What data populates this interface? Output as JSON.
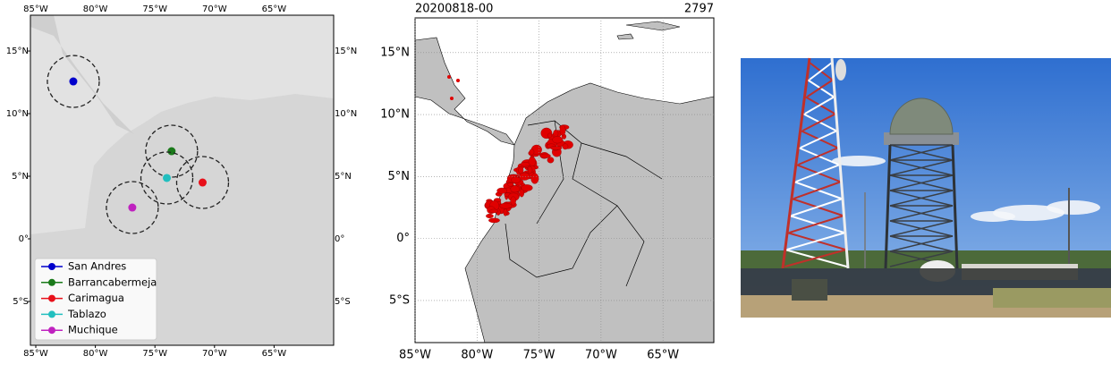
{
  "left_map": {
    "xlim": [
      -85.45,
      -60
    ],
    "ylim": [
      -8.5,
      17.86
    ],
    "xticks": [
      {
        "value": -85,
        "label": "85°W"
      },
      {
        "value": -80,
        "label": "80°W"
      },
      {
        "value": -75,
        "label": "75°W"
      },
      {
        "value": -70,
        "label": "70°W"
      },
      {
        "value": -65,
        "label": "65°W"
      }
    ],
    "yticks": [
      {
        "value": 15,
        "label": "15°N"
      },
      {
        "value": 10,
        "label": "10°N"
      },
      {
        "value": 5,
        "label": "5°N"
      },
      {
        "value": 0,
        "label": "0°"
      },
      {
        "value": -5,
        "label": "5°S"
      }
    ],
    "radars": [
      {
        "name": "San Andres",
        "color": "#0000cc",
        "lon": -81.85,
        "lat": 12.57
      },
      {
        "name": "Barrancabermeja",
        "color": "#1a7a1a",
        "lon": -73.6,
        "lat": 7.0
      },
      {
        "name": "Carimagua",
        "color": "#e8101a",
        "lon": -71.0,
        "lat": 4.5
      },
      {
        "name": "Tablazo",
        "color": "#22bfbf",
        "lon": -74.0,
        "lat": 4.86
      },
      {
        "name": "Muchique",
        "color": "#bf22bf",
        "lon": -76.9,
        "lat": 2.5
      }
    ]
  },
  "right_map": {
    "header_left": "20200818-00",
    "header_right": "2797",
    "xlim": [
      -85,
      -60.9
    ],
    "ylim": [
      -8.4,
      17.8
    ],
    "xticks": [
      {
        "value": -85,
        "label": "85°W"
      },
      {
        "value": -80,
        "label": "80°W"
      },
      {
        "value": -75,
        "label": "75°W"
      },
      {
        "value": -70,
        "label": "70°W"
      },
      {
        "value": -65,
        "label": "65°W"
      }
    ],
    "yticks": [
      {
        "value": 15,
        "label": "15°N"
      },
      {
        "value": 10,
        "label": "10°N"
      },
      {
        "value": 5,
        "label": "5°N"
      },
      {
        "value": 0,
        "label": "0°"
      },
      {
        "value": -5,
        "label": "5°S"
      }
    ]
  }
}
